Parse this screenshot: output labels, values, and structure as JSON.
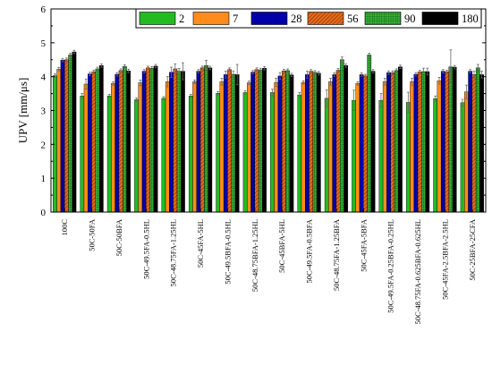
{
  "chart_data": {
    "type": "bar",
    "title": "",
    "xlabel": "",
    "ylabel": "UPV [mm/μs]",
    "ylim": [
      0,
      6
    ],
    "yticks": [
      0,
      1,
      2,
      3,
      4,
      5,
      6
    ],
    "legend_position": "top-right",
    "grid": false,
    "categories": [
      "100C",
      "50C-50FA",
      "50C-50BFA",
      "50C-49.5FA-0.5HL",
      "50C-48.75FA-1.25HL",
      "50C-45FA-5HL",
      "50C-49.5BFA-0.5HL",
      "50C-48.75BFA-1.25HL",
      "50C-45BFA-5HL",
      "50C-49.5FA-0.5BFA",
      "50C-48.75FA-1.25BFA",
      "50C-45FA-5BFA",
      "50C-49.5FA-0.25BFA-0.25HL",
      "50C-48.75FA-0.625BFA-0.625HL",
      "50C-45FA-2.5BFA-2.5HL",
      "50C-25BFA-25CFA"
    ],
    "series": [
      {
        "name": "2",
        "color": "#22bb22",
        "pattern": "solid",
        "values": [
          4.03,
          3.43,
          3.43,
          3.32,
          3.36,
          3.43,
          3.51,
          3.53,
          3.53,
          3.46,
          3.36,
          3.3,
          3.3,
          3.24,
          3.35,
          3.23
        ],
        "errors": [
          0.05,
          0.07,
          0.05,
          0.05,
          0.05,
          0.05,
          0.05,
          0.05,
          0.1,
          0.07,
          0.25,
          0.3,
          0.2,
          0.3,
          0.08,
          0.1
        ]
      },
      {
        "name": "7",
        "color": "#ff8c1a",
        "pattern": "solid",
        "values": [
          4.22,
          3.78,
          3.8,
          3.82,
          3.85,
          3.85,
          3.85,
          3.82,
          3.83,
          3.83,
          3.85,
          3.8,
          3.85,
          3.85,
          3.88,
          3.55
        ],
        "errors": [
          0.05,
          0.15,
          0.05,
          0.08,
          0.15,
          0.05,
          0.1,
          0.05,
          0.12,
          0.05,
          0.1,
          0.05,
          0.1,
          0.1,
          0.1,
          0.2
        ]
      },
      {
        "name": "28",
        "color": "#0000aa",
        "pattern": "solid",
        "values": [
          4.49,
          4.08,
          4.07,
          4.16,
          4.13,
          4.16,
          4.06,
          4.13,
          4.02,
          4.06,
          4.06,
          4.06,
          4.12,
          4.07,
          4.16,
          4.16
        ],
        "errors": [
          0.05,
          0.05,
          0.05,
          0.05,
          0.15,
          0.05,
          0.1,
          0.05,
          0.1,
          0.1,
          0.05,
          0.05,
          0.05,
          0.05,
          0.05,
          0.05
        ]
      },
      {
        "name": "56",
        "color": "#d4601a",
        "pattern": "hatch",
        "values": [
          4.5,
          4.14,
          4.18,
          4.26,
          4.23,
          4.26,
          4.21,
          4.21,
          4.17,
          4.16,
          4.19,
          4.02,
          4.12,
          4.14,
          4.14,
          4.06
        ],
        "errors": [
          0.05,
          0.05,
          0.05,
          0.05,
          0.15,
          0.05,
          0.05,
          0.05,
          0.05,
          0.05,
          0.05,
          0.05,
          0.05,
          0.05,
          0.05,
          0.1
        ]
      },
      {
        "name": "90",
        "color": "#33aa33",
        "pattern": "grid",
        "values": [
          4.64,
          4.23,
          4.3,
          4.25,
          4.16,
          4.33,
          4.07,
          4.2,
          4.18,
          4.13,
          4.5,
          4.64,
          4.18,
          4.15,
          4.29,
          4.26
        ],
        "errors": [
          0.05,
          0.05,
          0.05,
          0.05,
          0.08,
          0.15,
          0.1,
          0.05,
          0.05,
          0.05,
          0.08,
          0.05,
          0.05,
          0.1,
          0.5,
          0.1
        ]
      },
      {
        "name": "180",
        "color": "#000000",
        "pattern": "solid",
        "values": [
          4.73,
          4.33,
          4.17,
          4.31,
          4.16,
          4.26,
          4.06,
          4.25,
          4.05,
          4.1,
          4.33,
          4.16,
          4.29,
          4.15,
          4.28,
          4.06
        ],
        "errors": [
          0.05,
          0.05,
          0.05,
          0.05,
          0.25,
          0.05,
          0.3,
          0.05,
          0.05,
          0.05,
          0.05,
          0.05,
          0.05,
          0.1,
          0.05,
          0.1
        ]
      }
    ]
  }
}
